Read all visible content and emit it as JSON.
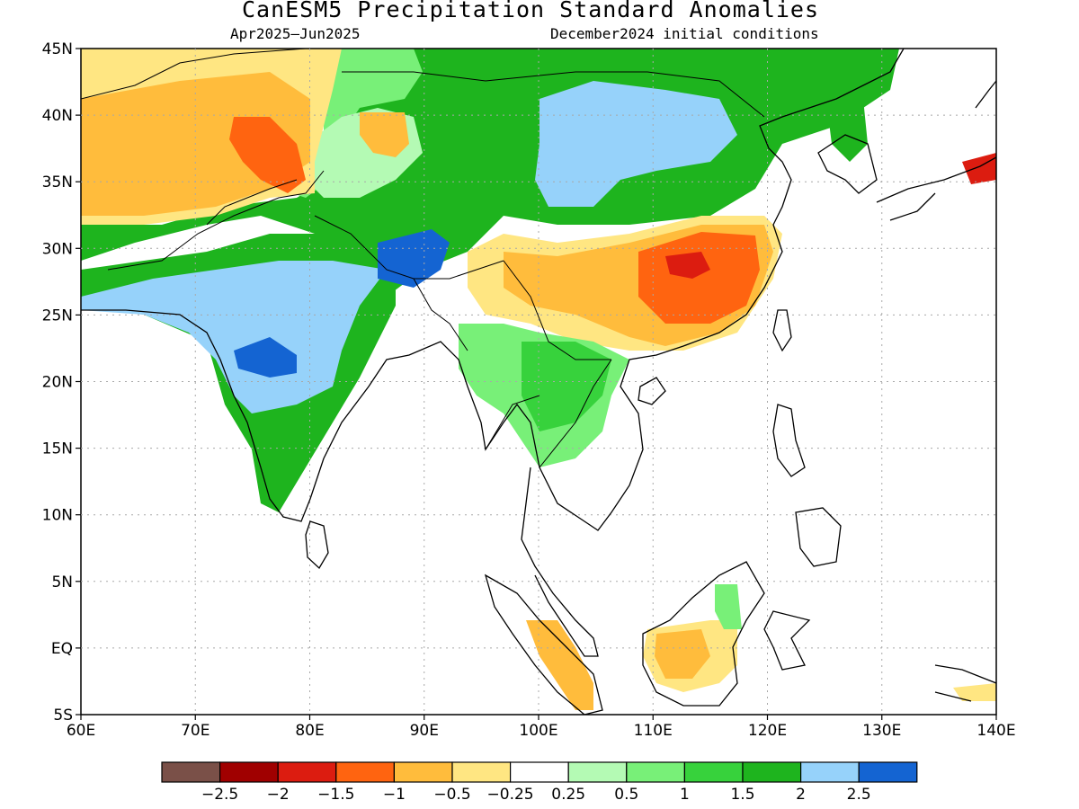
{
  "title": "CanESM5 Precipitation Standard Anomalies",
  "period": "Apr2025–Jun2025",
  "init": "December2024 initial conditions",
  "lat_labels": [
    "45N",
    "40N",
    "35N",
    "30N",
    "25N",
    "20N",
    "15N",
    "10N",
    "5N",
    "EQ",
    "5S"
  ],
  "lon_labels": [
    "60E",
    "70E",
    "80E",
    "90E",
    "100E",
    "110E",
    "120E",
    "130E",
    "140E"
  ],
  "legend": {
    "colors": [
      "#7a5048",
      "#a00000",
      "#dc1c10",
      "#ff6410",
      "#ffbc3c",
      "#ffe682",
      "#ffffff",
      "#b4fab4",
      "#78f078",
      "#37d23c",
      "#1eb41e",
      "#96d2fa",
      "#1464d2"
    ],
    "labels": [
      "−2.5",
      "−2",
      "−1.5",
      "−1",
      "−0.5",
      "−0.25",
      "0.25",
      "0.5",
      "1",
      "1.5",
      "2",
      "2.5"
    ]
  },
  "colors": {
    "coast": "#000000",
    "grid": "#a8a8a8",
    "ocean": "#ffffff"
  }
}
